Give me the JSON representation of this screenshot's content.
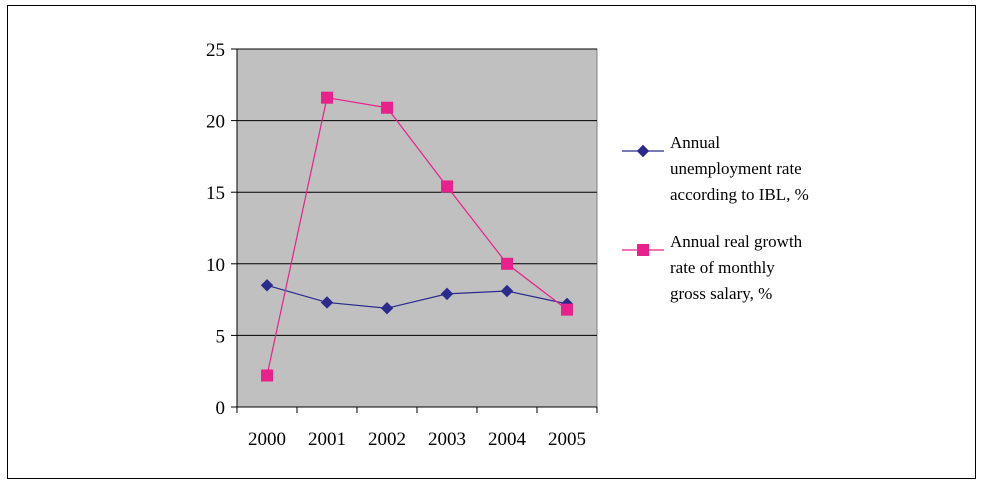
{
  "chart_data": {
    "type": "line",
    "categories": [
      "2000",
      "2001",
      "2002",
      "2003",
      "2004",
      "2005"
    ],
    "yticks": [
      "0",
      "5",
      "10",
      "15",
      "20",
      "25"
    ],
    "ylim": [
      0,
      25
    ],
    "grid": true,
    "legend_position": "right",
    "plot_background": "#c0c0c0",
    "series": [
      {
        "name": "Annual unemployment rate according to IBL, %",
        "legend_lines": [
          "Annual",
          "unemployment rate",
          "according to IBL, %"
        ],
        "marker": "diamond",
        "color": "#2b2b8c",
        "values": [
          8.5,
          7.3,
          6.9,
          7.9,
          8.1,
          7.2
        ]
      },
      {
        "name": "Annual real growth rate of monthly gross salary, %",
        "legend_lines": [
          "Annual real growth",
          "rate of monthly",
          "gross salary, %"
        ],
        "marker": "square",
        "color": "#e8218c",
        "values": [
          2.2,
          21.6,
          20.9,
          15.4,
          10.0,
          6.8
        ]
      }
    ]
  }
}
